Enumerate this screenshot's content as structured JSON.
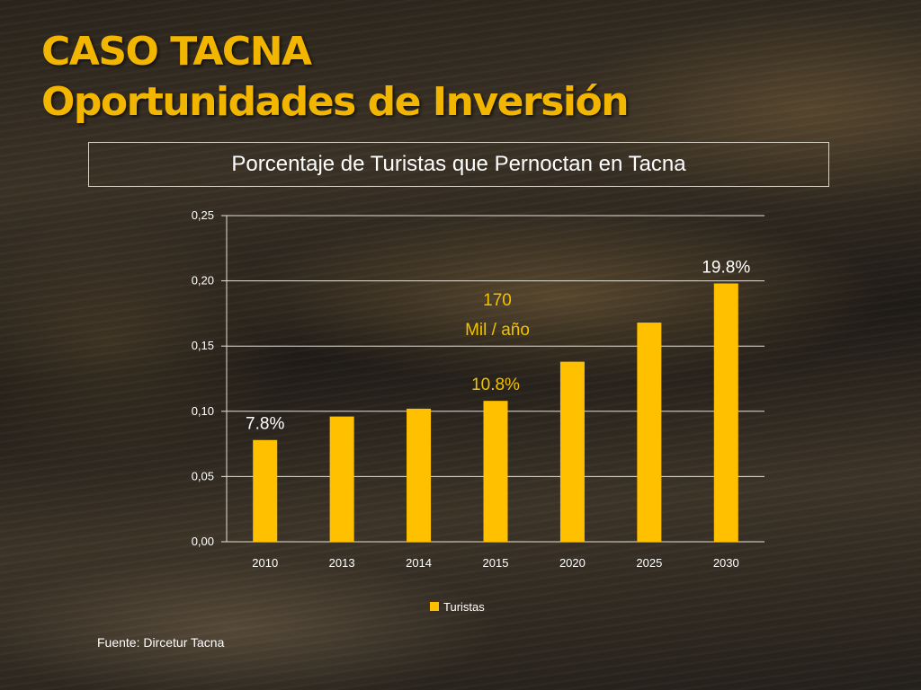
{
  "slide": {
    "title_line1": "CASO TACNA",
    "title_line2": "Oportunidades de Inversión",
    "source": "Fuente: Dircetur Tacna"
  },
  "colors": {
    "accent": "#f2b600",
    "bar": "#ffc000",
    "annotation": "#f2c200"
  },
  "chart_data": {
    "type": "bar",
    "title": "Porcentaje de Turistas que Pernoctan en Tacna",
    "categories": [
      "2010",
      "2013",
      "2014",
      "2015",
      "2020",
      "2025",
      "2030"
    ],
    "series": [
      {
        "name": "Turistas",
        "values": [
          0.078,
          0.096,
          0.102,
          0.108,
          0.138,
          0.168,
          0.198
        ]
      }
    ],
    "ylim": [
      0,
      0.25
    ],
    "yticks": [
      "0,00",
      "0,05",
      "0,10",
      "0,15",
      "0,20",
      "0,25"
    ],
    "grid": true,
    "legend_position": "bottom",
    "data_labels": [
      {
        "category": "2010",
        "text": "7.8%"
      },
      {
        "category": "2015",
        "text": "10.8%"
      },
      {
        "category": "2030",
        "text": "19.8%"
      }
    ],
    "annotation": {
      "category": "2015",
      "line1": "170",
      "line2": "Mil / año"
    }
  }
}
